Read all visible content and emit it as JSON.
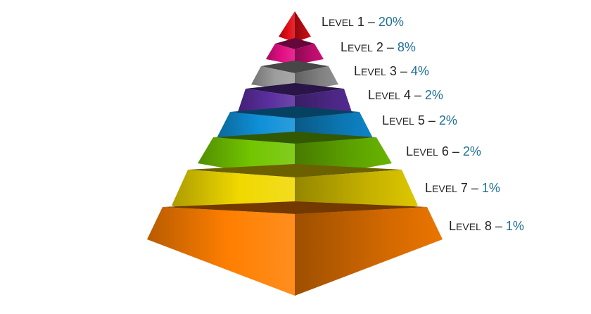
{
  "levels": [
    {
      "word_initial": "L",
      "word_rest": "EVEL",
      "number": "1",
      "dash": "–",
      "percent": "20%",
      "color": "#e10d16"
    },
    {
      "word_initial": "L",
      "word_rest": "EVEL",
      "number": "2",
      "dash": "–",
      "percent": "8%",
      "color": "#e20f83"
    },
    {
      "word_initial": "L",
      "word_rest": "EVEL",
      "number": "3",
      "dash": "–",
      "percent": "4%",
      "color": "#9d9d9d"
    },
    {
      "word_initial": "L",
      "word_rest": "EVEL",
      "number": "4",
      "dash": "–",
      "percent": "2%",
      "color": "#5a2e9e"
    },
    {
      "word_initial": "L",
      "word_rest": "EVEL",
      "number": "5",
      "dash": "–",
      "percent": "2%",
      "color": "#0f90d8"
    },
    {
      "word_initial": "L",
      "word_rest": "EVEL",
      "number": "6",
      "dash": "–",
      "percent": "2%",
      "color": "#72c500"
    },
    {
      "word_initial": "L",
      "word_rest": "EVEL",
      "number": "7",
      "dash": "–",
      "percent": "1%",
      "color": "#f0d800"
    },
    {
      "word_initial": "L",
      "word_rest": "EVEL",
      "number": "8",
      "dash": "–",
      "percent": "1%",
      "color": "#ff7f00"
    }
  ]
}
